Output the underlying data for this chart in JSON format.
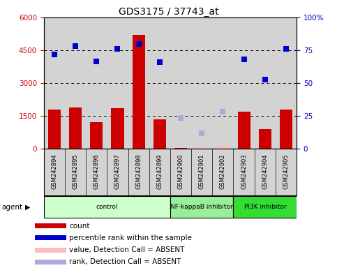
{
  "title": "GDS3175 / 37743_at",
  "samples": [
    "GSM242894",
    "GSM242895",
    "GSM242896",
    "GSM242897",
    "GSM242898",
    "GSM242899",
    "GSM242900",
    "GSM242901",
    "GSM242902",
    "GSM242903",
    "GSM242904",
    "GSM242905"
  ],
  "count_values": [
    1800,
    1900,
    1200,
    1850,
    5200,
    1350,
    30,
    80,
    0,
    1700,
    900,
    1800
  ],
  "count_absent": [
    false,
    false,
    false,
    false,
    false,
    false,
    false,
    true,
    true,
    false,
    false,
    false
  ],
  "percentile_vals": [
    4300,
    4700,
    4000,
    4550,
    4800,
    3950,
    null,
    null,
    null,
    4100,
    3150,
    4550
  ],
  "rank_absent": [
    null,
    null,
    null,
    null,
    null,
    null,
    1400,
    700,
    1700,
    null,
    null,
    null
  ],
  "value_absent": [
    null,
    null,
    null,
    null,
    null,
    null,
    null,
    100,
    130,
    null,
    null,
    null
  ],
  "ylim_left": [
    0,
    6000
  ],
  "ylim_right": [
    0,
    100
  ],
  "yticks_left": [
    0,
    1500,
    3000,
    4500,
    6000
  ],
  "yticks_right": [
    0,
    25,
    50,
    75,
    100
  ],
  "ytick_labels_left": [
    "0",
    "1500",
    "3000",
    "4500",
    "6000"
  ],
  "ytick_labels_right": [
    "0",
    "25",
    "50",
    "75",
    "100%"
  ],
  "agent_groups": [
    {
      "label": "control",
      "start": 0,
      "end": 5,
      "color": "#ccffcc"
    },
    {
      "label": "NF-kappaB inhibitor",
      "start": 6,
      "end": 8,
      "color": "#99ee99"
    },
    {
      "label": "PI3K inhibitor",
      "start": 9,
      "end": 11,
      "color": "#33dd33"
    }
  ],
  "bar_color": "#cc0000",
  "absent_bar_color": "#ffbbbb",
  "dot_color": "#0000cc",
  "absent_dot_color": "#aaaadd",
  "bg_color": "#d3d3d3",
  "left_axis_color": "#cc0000",
  "right_axis_color": "#0000bb",
  "legend_items": [
    {
      "color": "#cc0000",
      "label": "count"
    },
    {
      "color": "#0000cc",
      "label": "percentile rank within the sample"
    },
    {
      "color": "#ffbbbb",
      "label": "value, Detection Call = ABSENT"
    },
    {
      "color": "#aaaadd",
      "label": "rank, Detection Call = ABSENT"
    }
  ]
}
